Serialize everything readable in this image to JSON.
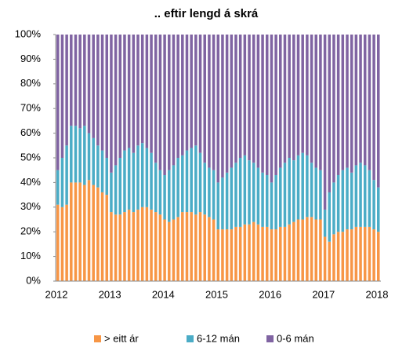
{
  "chart_data": {
    "type": "stacked_bar",
    "title": ".. eftir lengd á skrá",
    "categories": [
      "2012",
      null,
      null,
      null,
      null,
      null,
      null,
      null,
      null,
      null,
      null,
      null,
      "2013",
      null,
      null,
      null,
      null,
      null,
      null,
      null,
      null,
      null,
      null,
      null,
      "2014",
      null,
      null,
      null,
      null,
      null,
      null,
      null,
      null,
      null,
      null,
      null,
      "2015",
      null,
      null,
      null,
      null,
      null,
      null,
      null,
      null,
      null,
      null,
      null,
      "2016",
      null,
      null,
      null,
      null,
      null,
      null,
      null,
      null,
      null,
      null,
      null,
      "2017",
      null,
      null,
      null,
      null,
      null,
      null,
      null,
      null,
      null,
      null,
      null,
      "2018"
    ],
    "series": [
      {
        "name": "> eitt ár",
        "color": "#f79646",
        "values": [
          31,
          30,
          31,
          40,
          40,
          40,
          39,
          41,
          39,
          38,
          36,
          35,
          28,
          27,
          27,
          28,
          29,
          28,
          29,
          30,
          30,
          29,
          28,
          27,
          25,
          24,
          25,
          26,
          28,
          28,
          28,
          27,
          28,
          27,
          26,
          25,
          21,
          21,
          21,
          21,
          22,
          22,
          23,
          23,
          24,
          23,
          22,
          22,
          21,
          21,
          22,
          22,
          23,
          24,
          25,
          25,
          26,
          26,
          25,
          25,
          18,
          16,
          19,
          20,
          20,
          21,
          21,
          22,
          22,
          22,
          22,
          21,
          20
        ]
      },
      {
        "name": "6-12 mán",
        "color": "#4bacc6",
        "values": [
          14,
          20,
          24,
          23,
          23,
          22,
          24,
          19,
          19,
          17,
          17,
          15,
          16,
          20,
          23,
          25,
          25,
          24,
          26,
          26,
          24,
          23,
          20,
          18,
          18,
          21,
          22,
          24,
          23,
          25,
          26,
          28,
          24,
          21,
          20,
          20,
          19,
          21,
          23,
          25,
          26,
          28,
          28,
          26,
          24,
          23,
          22,
          21,
          19,
          22,
          24,
          26,
          27,
          25,
          26,
          27,
          25,
          22,
          21,
          20,
          11,
          20,
          21,
          23,
          25,
          25,
          23,
          25,
          26,
          25,
          23,
          20,
          18
        ]
      },
      {
        "name": "0-6 mán",
        "color": "#8064a2",
        "values": [
          55,
          50,
          45,
          37,
          37,
          38,
          37,
          40,
          42,
          45,
          47,
          50,
          56,
          53,
          50,
          47,
          46,
          48,
          45,
          44,
          46,
          48,
          52,
          55,
          57,
          55,
          53,
          50,
          49,
          47,
          46,
          45,
          48,
          52,
          54,
          55,
          60,
          58,
          56,
          54,
          52,
          50,
          49,
          51,
          52,
          54,
          56,
          57,
          60,
          57,
          54,
          52,
          50,
          51,
          49,
          48,
          49,
          52,
          54,
          55,
          71,
          64,
          60,
          57,
          55,
          54,
          56,
          53,
          52,
          53,
          55,
          59,
          62
        ]
      }
    ],
    "ylim": [
      0,
      100
    ],
    "yticks": [
      {
        "value": 0,
        "label": "0%"
      },
      {
        "value": 10,
        "label": "10%"
      },
      {
        "value": 20,
        "label": "20%"
      },
      {
        "value": 30,
        "label": "30%"
      },
      {
        "value": 40,
        "label": "40%"
      },
      {
        "value": 50,
        "label": "50%"
      },
      {
        "value": 60,
        "label": "60%"
      },
      {
        "value": 70,
        "label": "70%"
      },
      {
        "value": 80,
        "label": "80%"
      },
      {
        "value": 90,
        "label": "90%"
      },
      {
        "value": 100,
        "label": "100%"
      }
    ],
    "grid": false
  }
}
